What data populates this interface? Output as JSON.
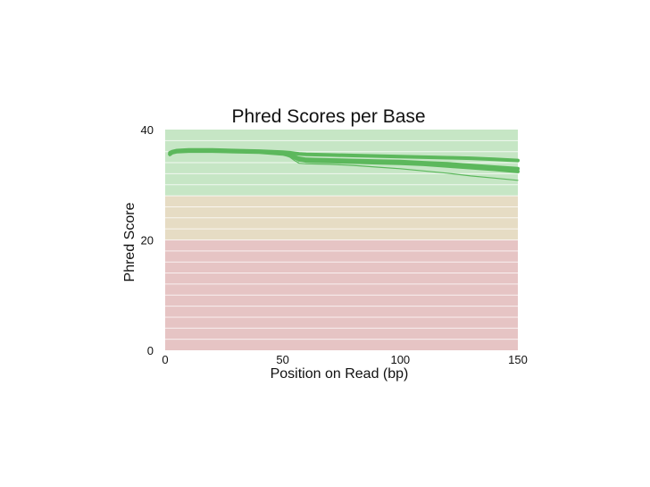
{
  "chart_data": {
    "type": "line",
    "title": "Phred Scores per Base",
    "xlabel": "Position on Read (bp)",
    "ylabel": "Phred Score",
    "xlim": [
      0,
      150
    ],
    "ylim": [
      0,
      40
    ],
    "x_ticks": [
      0,
      50,
      100,
      150
    ],
    "y_ticks": [
      0,
      20,
      40
    ],
    "grid": true,
    "legend": "none",
    "quality_bands": [
      {
        "name": "good",
        "from": 28,
        "to": 40,
        "color": "#c6e6c5"
      },
      {
        "name": "medium",
        "from": 20,
        "to": 28,
        "color": "#e6dcc4"
      },
      {
        "name": "poor",
        "from": 0,
        "to": 20,
        "color": "#e6c4c4"
      }
    ],
    "line_color": "#5cb85c",
    "series": [
      {
        "x": [
          2,
          3,
          5,
          10,
          20,
          30,
          40,
          50,
          53,
          55,
          57,
          60,
          70,
          80,
          90,
          100,
          110,
          120,
          130,
          140,
          150
        ],
        "values": [
          35.8,
          36.0,
          36.2,
          36.3,
          36.3,
          36.2,
          36.1,
          35.9,
          35.8,
          35.7,
          35.6,
          35.5,
          35.4,
          35.3,
          35.2,
          35.1,
          35.0,
          34.9,
          34.8,
          34.6,
          34.4
        ]
      },
      {
        "x": [
          2,
          3,
          5,
          10,
          20,
          30,
          40,
          50,
          53,
          55,
          57,
          60,
          70,
          80,
          90,
          100,
          110,
          120,
          130,
          140,
          150
        ],
        "values": [
          35.6,
          35.9,
          36.1,
          36.2,
          36.2,
          36.1,
          36.0,
          35.7,
          35.4,
          35.1,
          34.8,
          34.6,
          34.5,
          34.4,
          34.3,
          34.2,
          34.0,
          33.8,
          33.5,
          33.2,
          32.9
        ]
      },
      {
        "x": [
          2,
          3,
          5,
          10,
          20,
          30,
          40,
          50,
          53,
          55,
          57,
          60,
          70,
          80,
          90,
          100,
          110,
          120,
          130,
          140,
          150
        ],
        "values": [
          35.5,
          35.8,
          36.0,
          36.1,
          36.1,
          36.0,
          35.9,
          35.6,
          35.3,
          34.9,
          34.5,
          34.3,
          34.2,
          34.1,
          34.0,
          33.9,
          33.7,
          33.4,
          33.1,
          32.8,
          32.4
        ]
      },
      {
        "x": [
          2,
          3,
          5,
          10,
          20,
          30,
          40,
          50,
          53,
          55,
          57,
          60,
          70,
          80,
          90,
          100,
          110,
          120,
          130,
          140,
          150
        ],
        "values": [
          35.4,
          35.7,
          35.9,
          36.0,
          36.0,
          35.9,
          35.8,
          35.5,
          35.0,
          34.4,
          33.9,
          33.8,
          33.7,
          33.5,
          33.2,
          32.9,
          32.5,
          32.1,
          31.6,
          31.2,
          30.8
        ]
      }
    ]
  }
}
